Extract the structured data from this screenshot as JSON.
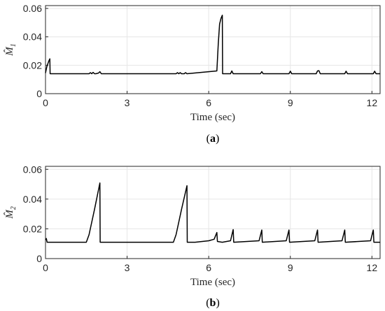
{
  "chart_data": [
    {
      "type": "line",
      "caption": "(a)",
      "caption_letter": "a",
      "ylabel": "M̂",
      "ylabel_sub": "1",
      "xlabel": "Time (sec)",
      "xlim": [
        0,
        12.3
      ],
      "ylim": [
        0,
        0.062
      ],
      "xticks": [
        0,
        3,
        6,
        9,
        12
      ],
      "yticks": [
        0,
        0.02,
        0.04,
        0.06
      ],
      "ytick_labels": [
        "0",
        "0.02",
        "0.04",
        "0.06"
      ],
      "grid": true,
      "series": [
        {
          "x": [
            0,
            0.05,
            0.12,
            0.16,
            0.17,
            1.6,
            1.65,
            1.7,
            1.75,
            1.8,
            1.85,
            1.95,
            2.0,
            2.05,
            4.8,
            4.85,
            4.9,
            4.95,
            5.0,
            5.1,
            5.15,
            5.2,
            6.3,
            6.35,
            6.4,
            6.45,
            6.5,
            6.51,
            6.8,
            6.85,
            6.9,
            7.9,
            7.95,
            8.0,
            8.95,
            9.0,
            9.05,
            9.95,
            10.0,
            10.05,
            10.1,
            11.0,
            11.05,
            11.1,
            12.05,
            12.1,
            12.15,
            12.3
          ],
          "y": [
            0.0145,
            0.019,
            0.023,
            0.0245,
            0.014,
            0.014,
            0.0148,
            0.014,
            0.015,
            0.014,
            0.014,
            0.0145,
            0.0155,
            0.014,
            0.014,
            0.0148,
            0.014,
            0.0148,
            0.014,
            0.014,
            0.0148,
            0.014,
            0.016,
            0.035,
            0.049,
            0.053,
            0.0552,
            0.014,
            0.014,
            0.016,
            0.014,
            0.014,
            0.0155,
            0.014,
            0.014,
            0.0158,
            0.014,
            0.014,
            0.016,
            0.0162,
            0.014,
            0.014,
            0.0158,
            0.014,
            0.014,
            0.0158,
            0.014,
            0.014
          ]
        }
      ]
    },
    {
      "type": "line",
      "caption": "(b)",
      "caption_letter": "b",
      "ylabel": "M̂",
      "ylabel_sub": "2",
      "xlabel": "Time (sec)",
      "xlim": [
        0,
        12.3
      ],
      "ylim": [
        0,
        0.062
      ],
      "xticks": [
        0,
        3,
        6,
        9,
        12
      ],
      "yticks": [
        0,
        0.02,
        0.04,
        0.06
      ],
      "ytick_labels": [
        "0",
        "0.02",
        "0.04",
        "0.06"
      ],
      "grid": true,
      "series": [
        {
          "x": [
            0,
            0.03,
            0.06,
            1.5,
            1.6,
            1.8,
            2.0,
            2.01,
            4.7,
            4.8,
            5.0,
            5.2,
            5.21,
            5.5,
            6.0,
            6.2,
            6.3,
            6.32,
            6.5,
            6.8,
            6.9,
            6.92,
            7.85,
            7.95,
            7.97,
            8.85,
            8.95,
            8.97,
            9.9,
            10.0,
            10.02,
            10.9,
            11.0,
            11.02,
            11.95,
            12.05,
            12.07,
            12.3
          ],
          "y": [
            0.0125,
            0.0135,
            0.011,
            0.011,
            0.016,
            0.033,
            0.0508,
            0.011,
            0.011,
            0.016,
            0.033,
            0.049,
            0.011,
            0.011,
            0.012,
            0.013,
            0.0175,
            0.0115,
            0.011,
            0.012,
            0.0195,
            0.011,
            0.012,
            0.0192,
            0.011,
            0.012,
            0.0192,
            0.011,
            0.012,
            0.0192,
            0.011,
            0.012,
            0.0192,
            0.011,
            0.012,
            0.0192,
            0.011,
            0.011
          ]
        }
      ]
    }
  ]
}
